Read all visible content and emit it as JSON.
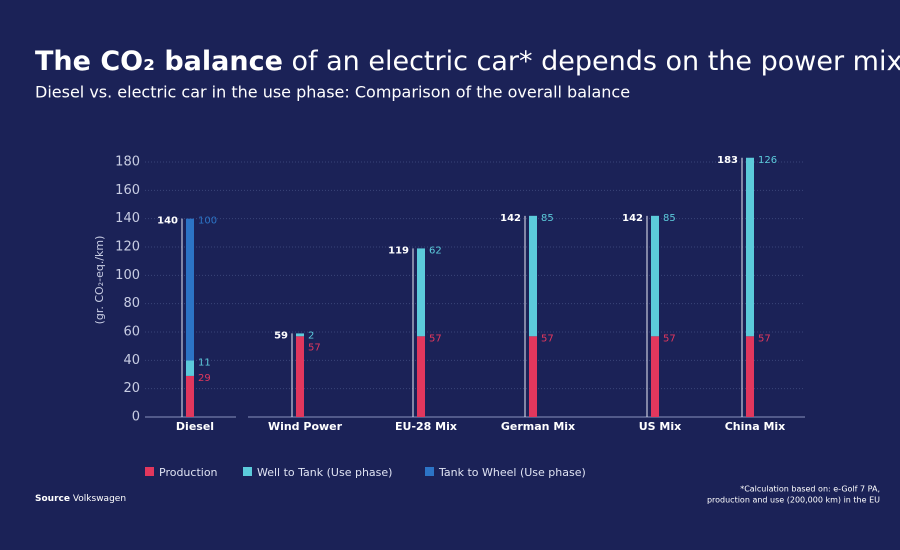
{
  "chart_data": {
    "type": "stacked-bar",
    "title": [
      "The CO₂ balance",
      "of an electric car* depends on the power mix"
    ],
    "subtitle": "Diesel vs. electric car in the use phase: Comparison of the overall balance",
    "y_label": "(gr. CO₂-eq./km)",
    "categories": [
      "Diesel",
      "Wind Power",
      "EU-28 Mix",
      "German Mix",
      "US Mix",
      "China Mix"
    ],
    "series": [
      {
        "name": "Production",
        "color": "#e2375d",
        "values": [
          29,
          57,
          57,
          57,
          57,
          57
        ]
      },
      {
        "name": "Well to Tank (Use phase)",
        "color": "#5ccbdb",
        "values": [
          11,
          2,
          62,
          85,
          85,
          126
        ]
      },
      {
        "name": "Tank to Wheel (Use phase)",
        "color": "#2c74c6",
        "values": [
          100,
          null,
          null,
          null,
          null,
          null
        ]
      }
    ],
    "totals": [
      140,
      59,
      119,
      142,
      142,
      183
    ],
    "ylim": [
      0,
      180
    ],
    "yticks": [
      0,
      20,
      40,
      60,
      80,
      100,
      120,
      140,
      160,
      180
    ],
    "grid": true,
    "source": [
      "Source",
      "Volkswagen"
    ],
    "footnote": [
      "*Calculation based on: e-Golf 7 PA,",
      "production and use (200,000 km) in the EU"
    ]
  }
}
